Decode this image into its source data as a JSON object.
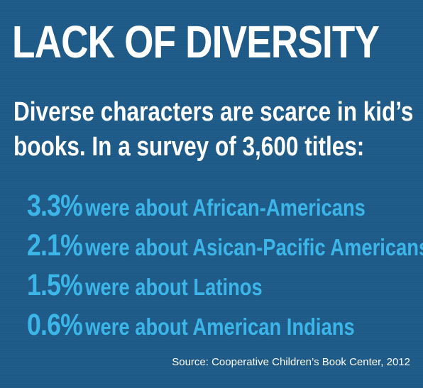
{
  "title": "LACK OF DIVERSITY",
  "intro": {
    "line1": "Diverse characters are scarce in kid’s",
    "line2": "books. In a survey of 3,600 titles:"
  },
  "stats": [
    {
      "percent": "3.3%",
      "text": "were about African-Americans"
    },
    {
      "percent": "2.1%",
      "text": "were about Asican-Pacific Americans"
    },
    {
      "percent": "1.5%",
      "text": "were about Latinos"
    },
    {
      "percent": "0.6%",
      "text": "were about American Indians"
    }
  ],
  "source": "Source: Cooperative Children’s Book Center, 2012",
  "colors": {
    "background": "#1e5a87",
    "title": "#ffffff",
    "accent": "#3cb5e8"
  }
}
